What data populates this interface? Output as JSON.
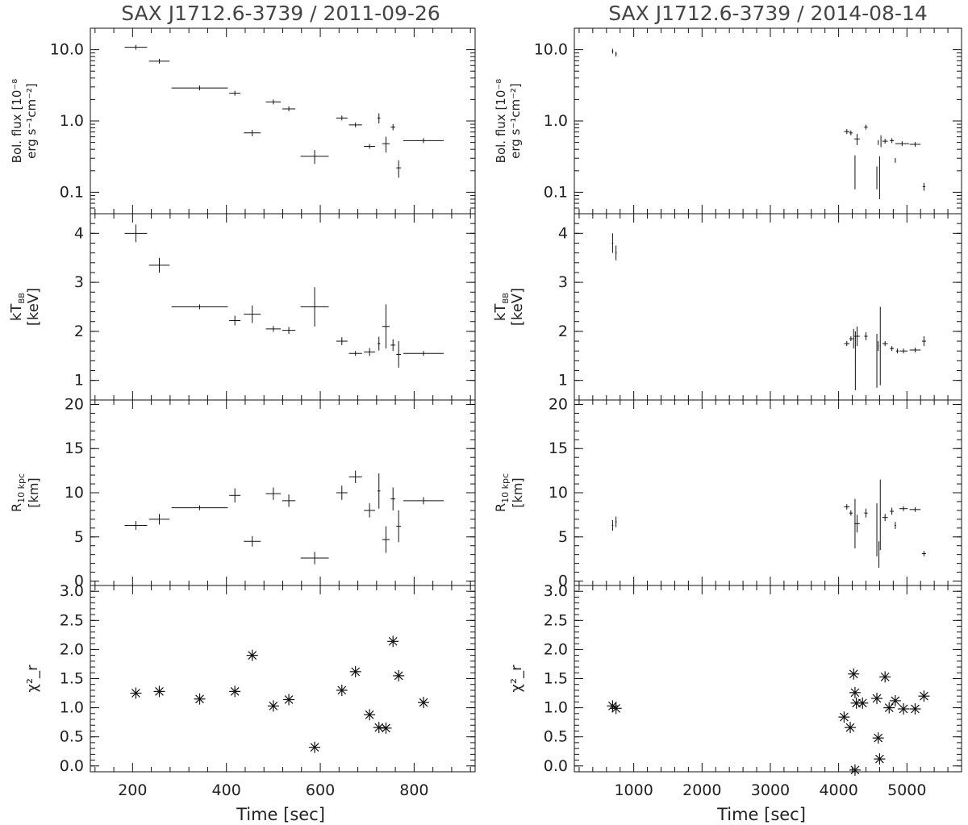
{
  "figure": {
    "panels": [
      {
        "key": "flux",
        "ylabel_lines": [
          "Bol. flux [10⁻⁸",
          "erg s⁻¹cm⁻²]"
        ]
      },
      {
        "key": "kt",
        "ylabel_lines": [
          "kT_BB",
          "[keV]"
        ]
      },
      {
        "key": "r",
        "ylabel_lines": [
          "R_10 kpc",
          "[km]"
        ]
      },
      {
        "key": "chi2",
        "ylabel_lines": [
          "χ²_r"
        ]
      }
    ],
    "xlabel": "Time [sec]"
  },
  "chart_data": [
    {
      "type": "scatter",
      "title": "SAX J1712.6-3739 / 2011-09-26",
      "xlabel": "Time [sec]",
      "xlim": [
        110,
        930
      ],
      "xticks": [
        200,
        400,
        600,
        800
      ],
      "panels": {
        "flux": {
          "yscale": "log",
          "ylim": [
            0.05,
            20
          ],
          "yticks": [
            0.1,
            1.0,
            10.0
          ],
          "ytick_labels": [
            "0.1",
            "1.0",
            "10.0"
          ],
          "points": [
            {
              "x": 207,
              "xerr": 24,
              "y": 10.8,
              "yerr": 0.4
            },
            {
              "x": 257,
              "xerr": 22,
              "y": 6.9,
              "yerr": 0.3
            },
            {
              "x": 343,
              "xerr": 60,
              "y": 2.9,
              "yerr": 0.1
            },
            {
              "x": 418,
              "xerr": 12,
              "y": 2.45,
              "yerr": 0.15
            },
            {
              "x": 455,
              "xerr": 18,
              "y": 0.68,
              "yerr": 0.07
            },
            {
              "x": 500,
              "xerr": 16,
              "y": 1.85,
              "yerr": 0.1
            },
            {
              "x": 533,
              "xerr": 14,
              "y": 1.48,
              "yerr": 0.08
            },
            {
              "x": 588,
              "xerr": 30,
              "y": 0.32,
              "yerr": 0.07
            },
            {
              "x": 646,
              "xerr": 12,
              "y": 1.1,
              "yerr": 0.07
            },
            {
              "x": 675,
              "xerr": 14,
              "y": 0.88,
              "yerr": 0.05
            },
            {
              "x": 705,
              "xerr": 12,
              "y": 0.44,
              "yerr": 0.03
            },
            {
              "x": 725,
              "xerr": 3,
              "y": 1.1,
              "yerr": 0.18
            },
            {
              "x": 740,
              "xerr": 8,
              "y": 0.48,
              "yerr": 0.12
            },
            {
              "x": 755,
              "xerr": 5,
              "y": 0.82,
              "yerr": 0.08
            },
            {
              "x": 767,
              "xerr": 5,
              "y": 0.22,
              "yerr": 0.06
            },
            {
              "x": 820,
              "xerr": 43,
              "y": 0.53,
              "yerr": 0.02
            }
          ]
        },
        "kt": {
          "yscale": "linear",
          "ylim": [
            0.6,
            4.4
          ],
          "yticks": [
            1,
            2,
            3,
            4
          ],
          "ytick_labels": [
            "1",
            "2",
            "3",
            "4"
          ],
          "points": [
            {
              "x": 207,
              "xerr": 24,
              "y": 4.0,
              "yerr": 0.18
            },
            {
              "x": 257,
              "xerr": 22,
              "y": 3.35,
              "yerr": 0.15
            },
            {
              "x": 343,
              "xerr": 60,
              "y": 2.5,
              "yerr": 0.05
            },
            {
              "x": 418,
              "xerr": 12,
              "y": 2.22,
              "yerr": 0.1
            },
            {
              "x": 455,
              "xerr": 18,
              "y": 2.35,
              "yerr": 0.18
            },
            {
              "x": 500,
              "xerr": 16,
              "y": 2.05,
              "yerr": 0.06
            },
            {
              "x": 533,
              "xerr": 14,
              "y": 2.02,
              "yerr": 0.07
            },
            {
              "x": 588,
              "xerr": 30,
              "y": 2.5,
              "yerr": 0.4
            },
            {
              "x": 646,
              "xerr": 12,
              "y": 1.8,
              "yerr": 0.08
            },
            {
              "x": 675,
              "xerr": 14,
              "y": 1.55,
              "yerr": 0.05
            },
            {
              "x": 705,
              "xerr": 12,
              "y": 1.58,
              "yerr": 0.08
            },
            {
              "x": 725,
              "xerr": 3,
              "y": 1.75,
              "yerr": 0.14
            },
            {
              "x": 740,
              "xerr": 8,
              "y": 2.1,
              "yerr": 0.45
            },
            {
              "x": 755,
              "xerr": 5,
              "y": 1.72,
              "yerr": 0.12
            },
            {
              "x": 767,
              "xerr": 5,
              "y": 1.53,
              "yerr": 0.27
            },
            {
              "x": 820,
              "xerr": 43,
              "y": 1.55,
              "yerr": 0.02
            }
          ]
        },
        "r": {
          "yscale": "linear",
          "ylim": [
            -0.5,
            20.5
          ],
          "yticks": [
            0,
            5,
            10,
            15,
            20
          ],
          "ytick_labels": [
            "0",
            "5",
            "10",
            "15",
            "20"
          ],
          "points": [
            {
              "x": 207,
              "xerr": 24,
              "y": 6.3,
              "yerr": 0.5
            },
            {
              "x": 257,
              "xerr": 22,
              "y": 7.0,
              "yerr": 0.6
            },
            {
              "x": 343,
              "xerr": 60,
              "y": 8.3,
              "yerr": 0.2
            },
            {
              "x": 418,
              "xerr": 12,
              "y": 9.7,
              "yerr": 0.8
            },
            {
              "x": 455,
              "xerr": 18,
              "y": 4.5,
              "yerr": 0.6
            },
            {
              "x": 500,
              "xerr": 16,
              "y": 9.9,
              "yerr": 0.7
            },
            {
              "x": 533,
              "xerr": 14,
              "y": 9.1,
              "yerr": 0.7
            },
            {
              "x": 588,
              "xerr": 30,
              "y": 2.6,
              "yerr": 0.7
            },
            {
              "x": 646,
              "xerr": 12,
              "y": 10.0,
              "yerr": 0.8
            },
            {
              "x": 675,
              "xerr": 14,
              "y": 11.8,
              "yerr": 0.7
            },
            {
              "x": 705,
              "xerr": 12,
              "y": 8.0,
              "yerr": 0.8
            },
            {
              "x": 725,
              "xerr": 3,
              "y": 10.2,
              "yerr": 2.0
            },
            {
              "x": 740,
              "xerr": 8,
              "y": 4.7,
              "yerr": 1.5
            },
            {
              "x": 755,
              "xerr": 5,
              "y": 9.3,
              "yerr": 1.3
            },
            {
              "x": 767,
              "xerr": 5,
              "y": 6.2,
              "yerr": 1.8
            },
            {
              "x": 820,
              "xerr": 43,
              "y": 9.1,
              "yerr": 0.4
            }
          ]
        },
        "chi2": {
          "yscale": "linear",
          "ylim": [
            -0.1,
            3.1
          ],
          "yticks": [
            0,
            0.5,
            1,
            1.5,
            2,
            2.5,
            3
          ],
          "ytick_labels": [
            "0.0",
            "0.5",
            "1.0",
            "1.5",
            "2.0",
            "2.5",
            "3.0"
          ],
          "points": [
            {
              "x": 207,
              "y": 1.25
            },
            {
              "x": 257,
              "y": 1.28
            },
            {
              "x": 343,
              "y": 1.15
            },
            {
              "x": 418,
              "y": 1.28
            },
            {
              "x": 455,
              "y": 1.9
            },
            {
              "x": 500,
              "y": 1.03
            },
            {
              "x": 533,
              "y": 1.14
            },
            {
              "x": 588,
              "y": 0.32
            },
            {
              "x": 646,
              "y": 1.3
            },
            {
              "x": 675,
              "y": 1.62
            },
            {
              "x": 705,
              "y": 0.88
            },
            {
              "x": 725,
              "y": 0.66
            },
            {
              "x": 740,
              "y": 0.65
            },
            {
              "x": 755,
              "y": 2.14
            },
            {
              "x": 767,
              "y": 1.55
            },
            {
              "x": 820,
              "y": 1.09
            }
          ]
        }
      }
    },
    {
      "type": "scatter",
      "title": "SAX J1712.6-3739 / 2014-08-14",
      "xlabel": "Time [sec]",
      "xlim": [
        130,
        5800
      ],
      "xticks": [
        1000,
        2000,
        3000,
        4000,
        5000
      ],
      "panels": {
        "flux": {
          "yscale": "log",
          "ylim": [
            0.05,
            20
          ],
          "yticks": [
            0.1,
            1.0,
            10.0
          ],
          "ytick_labels": [
            "0.1",
            "1.0",
            "10.0"
          ],
          "points": [
            {
              "x": 690,
              "xerr": 10,
              "y": 9.5,
              "yerr": 0.6
            },
            {
              "x": 740,
              "xerr": 10,
              "y": 8.7,
              "yerr": 0.6
            },
            {
              "x": 4120,
              "xerr": 40,
              "y": 0.71,
              "yerr": 0.02
            },
            {
              "x": 4180,
              "xerr": 25,
              "y": 0.68,
              "yerr": 0.02
            },
            {
              "x": 4240,
              "xerr": 5,
              "y": 0.22,
              "yerr": 0.11
            },
            {
              "x": 4270,
              "xerr": 40,
              "y": 0.56,
              "yerr": 0.1
            },
            {
              "x": 4400,
              "xerr": 25,
              "y": 0.82,
              "yerr": 0.03
            },
            {
              "x": 4560,
              "xerr": 5,
              "y": 0.17,
              "yerr": 0.06
            },
            {
              "x": 4580,
              "xerr": 5,
              "y": 0.5,
              "yerr": 0.04
            },
            {
              "x": 4600,
              "xerr": 5,
              "y": 0.2,
              "yerr": 0.12
            },
            {
              "x": 4620,
              "xerr": 5,
              "y": 0.53,
              "yerr": 0.1
            },
            {
              "x": 4680,
              "xerr": 40,
              "y": 0.52,
              "yerr": 0.02
            },
            {
              "x": 4780,
              "xerr": 30,
              "y": 0.53,
              "yerr": 0.02
            },
            {
              "x": 4830,
              "xerr": 5,
              "y": 0.28,
              "yerr": 0.02
            },
            {
              "x": 4930,
              "xerr": 100,
              "y": 0.48,
              "yerr": 0.01
            },
            {
              "x": 5120,
              "xerr": 80,
              "y": 0.47,
              "yerr": 0.01
            },
            {
              "x": 5250,
              "xerr": 20,
              "y": 0.12,
              "yerr": 0.015
            }
          ]
        },
        "kt": {
          "yscale": "linear",
          "ylim": [
            0.6,
            4.4
          ],
          "yticks": [
            1,
            2,
            3,
            4
          ],
          "ytick_labels": [
            "1",
            "2",
            "3",
            "4"
          ],
          "points": [
            {
              "x": 690,
              "xerr": 10,
              "y": 3.8,
              "yerr": 0.2
            },
            {
              "x": 740,
              "xerr": 10,
              "y": 3.6,
              "yerr": 0.15
            },
            {
              "x": 4120,
              "xerr": 40,
              "y": 1.75,
              "yerr": 0.05
            },
            {
              "x": 4180,
              "xerr": 25,
              "y": 1.85,
              "yerr": 0.05
            },
            {
              "x": 4220,
              "xerr": 10,
              "y": 1.85,
              "yerr": 0.2
            },
            {
              "x": 4245,
              "xerr": 5,
              "y": 1.4,
              "yerr": 0.6
            },
            {
              "x": 4270,
              "xerr": 40,
              "y": 1.9,
              "yerr": 0.2
            },
            {
              "x": 4400,
              "xerr": 25,
              "y": 1.9,
              "yerr": 0.08
            },
            {
              "x": 4560,
              "xerr": 5,
              "y": 1.4,
              "yerr": 0.55
            },
            {
              "x": 4580,
              "xerr": 5,
              "y": 1.7,
              "yerr": 0.1
            },
            {
              "x": 4610,
              "xerr": 5,
              "y": 1.7,
              "yerr": 0.8
            },
            {
              "x": 4680,
              "xerr": 40,
              "y": 1.75,
              "yerr": 0.05
            },
            {
              "x": 4780,
              "xerr": 30,
              "y": 1.65,
              "yerr": 0.05
            },
            {
              "x": 4860,
              "xerr": 20,
              "y": 1.6,
              "yerr": 0.04
            },
            {
              "x": 4950,
              "xerr": 60,
              "y": 1.6,
              "yerr": 0.03
            },
            {
              "x": 5120,
              "xerr": 80,
              "y": 1.62,
              "yerr": 0.03
            },
            {
              "x": 5250,
              "xerr": 30,
              "y": 1.8,
              "yerr": 0.1
            }
          ]
        },
        "r": {
          "yscale": "linear",
          "ylim": [
            -0.5,
            20.5
          ],
          "yticks": [
            0,
            5,
            10,
            15,
            20
          ],
          "ytick_labels": [
            "0",
            "5",
            "10",
            "15",
            "20"
          ],
          "points": [
            {
              "x": 690,
              "xerr": 10,
              "y": 6.3,
              "yerr": 0.6
            },
            {
              "x": 740,
              "xerr": 10,
              "y": 6.7,
              "yerr": 0.6
            },
            {
              "x": 4120,
              "xerr": 40,
              "y": 8.4,
              "yerr": 0.3
            },
            {
              "x": 4180,
              "xerr": 25,
              "y": 7.7,
              "yerr": 0.3
            },
            {
              "x": 4240,
              "xerr": 5,
              "y": 6.5,
              "yerr": 2.8
            },
            {
              "x": 4270,
              "xerr": 40,
              "y": 6.5,
              "yerr": 1.0
            },
            {
              "x": 4400,
              "xerr": 25,
              "y": 7.7,
              "yerr": 0.5
            },
            {
              "x": 4560,
              "xerr": 5,
              "y": 5.8,
              "yerr": 3.0
            },
            {
              "x": 4590,
              "xerr": 5,
              "y": 3.0,
              "yerr": 1.5
            },
            {
              "x": 4610,
              "xerr": 5,
              "y": 7.5,
              "yerr": 4.0
            },
            {
              "x": 4680,
              "xerr": 40,
              "y": 7.2,
              "yerr": 0.4
            },
            {
              "x": 4780,
              "xerr": 30,
              "y": 7.9,
              "yerr": 0.4
            },
            {
              "x": 4830,
              "xerr": 10,
              "y": 6.3,
              "yerr": 0.4
            },
            {
              "x": 4950,
              "xerr": 60,
              "y": 8.2,
              "yerr": 0.2
            },
            {
              "x": 5120,
              "xerr": 80,
              "y": 8.1,
              "yerr": 0.2
            },
            {
              "x": 5250,
              "xerr": 30,
              "y": 3.1,
              "yerr": 0.3
            }
          ]
        },
        "chi2": {
          "yscale": "linear",
          "ylim": [
            -0.1,
            3.1
          ],
          "yticks": [
            0,
            0.5,
            1,
            1.5,
            2,
            2.5,
            3
          ],
          "ytick_labels": [
            "0.0",
            "0.5",
            "1.0",
            "1.5",
            "2.0",
            "2.5",
            "3.0"
          ],
          "points": [
            {
              "x": 690,
              "y": 1.03
            },
            {
              "x": 740,
              "y": 0.99
            },
            {
              "x": 4080,
              "y": 0.84
            },
            {
              "x": 4170,
              "y": 0.66
            },
            {
              "x": 4220,
              "y": 1.58
            },
            {
              "x": 4240,
              "y": 1.26
            },
            {
              "x": 4260,
              "y": 1.08
            },
            {
              "x": 4240,
              "y": -0.07
            },
            {
              "x": 4350,
              "y": 1.08
            },
            {
              "x": 4560,
              "y": 1.16
            },
            {
              "x": 4580,
              "y": 0.48
            },
            {
              "x": 4600,
              "y": 0.12
            },
            {
              "x": 4680,
              "y": 1.53
            },
            {
              "x": 4740,
              "y": 1.0
            },
            {
              "x": 4830,
              "y": 1.12
            },
            {
              "x": 4950,
              "y": 0.98
            },
            {
              "x": 5120,
              "y": 0.98
            },
            {
              "x": 5250,
              "y": 1.2
            }
          ]
        }
      }
    }
  ]
}
